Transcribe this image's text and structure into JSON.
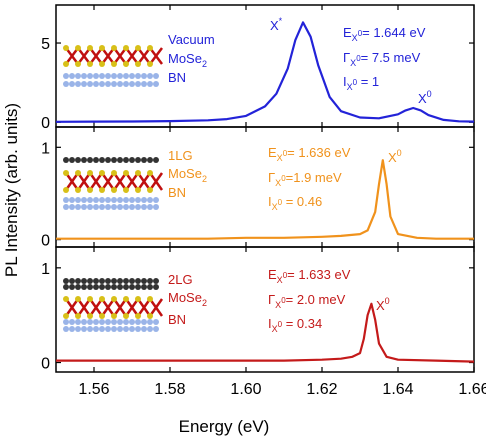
{
  "axis_labels": {
    "x": "Energy (eV)",
    "y": "PL Intensity (arb. units)"
  },
  "chart_data": [
    {
      "type": "line",
      "xlim": [
        1.55,
        1.66
      ],
      "ylim": [
        -0.3,
        7.4
      ],
      "yticks": [
        0,
        5
      ],
      "layers": [
        [
          "Vacuum"
        ],
        [
          "MoSe",
          "2"
        ],
        [
          "BN"
        ]
      ],
      "peaks": [
        [
          "X",
          "*"
        ],
        [
          "X",
          "0"
        ]
      ],
      "stats": [
        [
          "E",
          "X",
          "0",
          "= 1.644 eV"
        ],
        [
          "Γ",
          "X",
          "0",
          "= 7.5 meV"
        ],
        [
          "I",
          "X",
          "0",
          " = 1"
        ]
      ],
      "x": [
        1.55,
        1.56,
        1.57,
        1.58,
        1.59,
        1.595,
        1.6,
        1.605,
        1.608,
        1.611,
        1.613,
        1.615,
        1.617,
        1.619,
        1.622,
        1.625,
        1.63,
        1.635,
        1.64,
        1.642,
        1.644,
        1.646,
        1.648,
        1.652,
        1.656,
        1.66
      ],
      "series": [
        {
          "color": "#2323d8",
          "values": [
            0.03,
            0.04,
            0.05,
            0.07,
            0.12,
            0.2,
            0.4,
            1.0,
            1.8,
            3.4,
            5.2,
            6.3,
            5.4,
            3.6,
            1.6,
            0.7,
            0.3,
            0.25,
            0.5,
            0.75,
            0.9,
            0.75,
            0.45,
            0.15,
            0.06,
            0.04
          ]
        }
      ]
    },
    {
      "type": "line",
      "xlim": [
        1.55,
        1.66
      ],
      "ylim": [
        -0.08,
        1.22
      ],
      "yticks": [
        0,
        1
      ],
      "layers": [
        [
          "1LG"
        ],
        [
          "MoSe",
          "2"
        ],
        [
          "BN"
        ]
      ],
      "peaks": [
        [
          "X",
          "0"
        ]
      ],
      "stats": [
        [
          "E",
          "X",
          "0",
          "= 1.636 eV"
        ],
        [
          "Γ",
          "X",
          "0",
          "=1.9 meV"
        ],
        [
          "I",
          "X",
          "0",
          " = 0.46"
        ]
      ],
      "x": [
        1.55,
        1.57,
        1.59,
        1.6,
        1.61,
        1.62,
        1.625,
        1.63,
        1.632,
        1.634,
        1.635,
        1.636,
        1.637,
        1.638,
        1.64,
        1.645,
        1.65,
        1.66
      ],
      "series": [
        {
          "color": "#f0921c",
          "values": [
            0.01,
            0.01,
            0.01,
            0.02,
            0.02,
            0.03,
            0.04,
            0.06,
            0.1,
            0.3,
            0.6,
            0.86,
            0.6,
            0.25,
            0.06,
            0.02,
            0.01,
            0.01
          ]
        }
      ]
    },
    {
      "type": "line",
      "xlim": [
        1.55,
        1.66
      ],
      "ylim": [
        -0.1,
        1.22
      ],
      "yticks": [
        0,
        1
      ],
      "xticks": [
        1.56,
        1.58,
        {
          "value": 1.6,
          "label": "1.60"
        },
        1.62,
        1.64,
        1.66
      ],
      "layers": [
        [
          "2LG"
        ],
        [
          "MoSe",
          "2"
        ],
        [
          "BN"
        ]
      ],
      "peaks": [
        [
          "X",
          "0"
        ]
      ],
      "stats": [
        [
          "E",
          "X",
          "0",
          "= 1.633 eV"
        ],
        [
          "Γ",
          "X",
          "0",
          "= 2.0 meV"
        ],
        [
          "I",
          "X",
          "0",
          " = 0.34"
        ]
      ],
      "x": [
        1.55,
        1.57,
        1.59,
        1.6,
        1.61,
        1.62,
        1.625,
        1.628,
        1.63,
        1.631,
        1.632,
        1.633,
        1.634,
        1.635,
        1.637,
        1.64,
        1.65,
        1.66
      ],
      "series": [
        {
          "color": "#c41a1a",
          "values": [
            0.02,
            0.02,
            0.02,
            0.02,
            0.02,
            0.03,
            0.04,
            0.06,
            0.1,
            0.25,
            0.5,
            0.62,
            0.45,
            0.2,
            0.06,
            0.03,
            0.02,
            0.01
          ]
        }
      ]
    }
  ]
}
